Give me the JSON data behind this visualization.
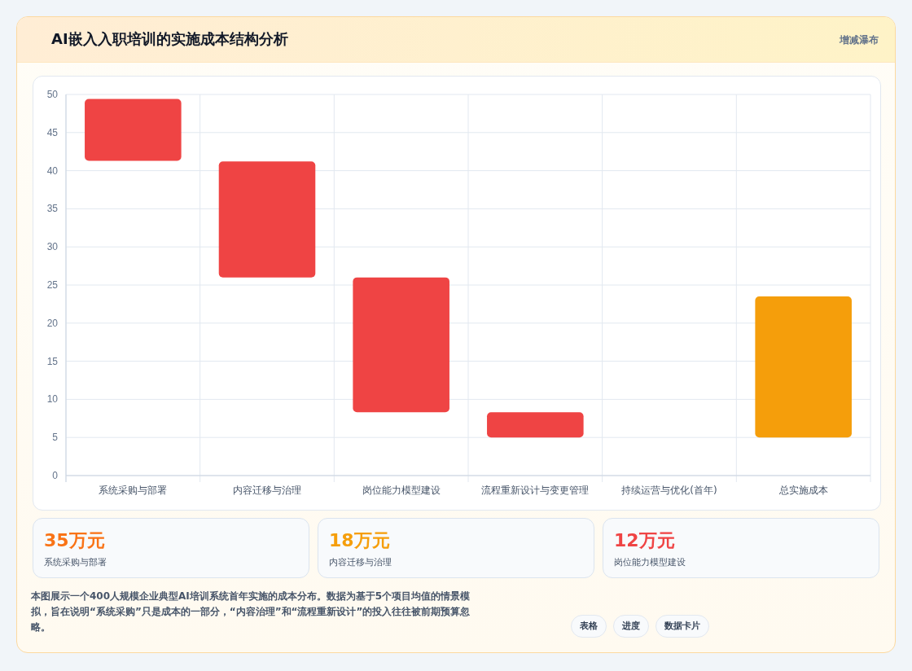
{
  "chart_data": [
    {
      "type": "bar",
      "title": "AI嵌入入职培训的实施成本结构分析",
      "subtitle": "增减瀑布",
      "categories": [
        "系统采购与部署",
        "内容迁移与治理",
        "岗位能力模型建设",
        "流程重新设计与变更管理",
        "持续运营与优化(首年)",
        "总实施成本"
      ],
      "base": [
        41.3,
        26,
        8.3,
        5,
        null,
        5
      ],
      "values": [
        8.1,
        15.2,
        17.7,
        3.3,
        null,
        18.5
      ],
      "colors": [
        "#ef4444",
        "#ef4444",
        "#ef4444",
        "#ef4444",
        null,
        "#f59e0b"
      ],
      "ylim": [
        0,
        50
      ],
      "yticks": [
        0,
        5,
        10,
        15,
        20,
        25,
        30,
        35,
        40,
        45,
        50
      ],
      "grid": true,
      "annotations": [
        "本图展示一个400人规模企业典型AI培训系统首年实施的成本分布。数据为基于5个项目均值的情景模拟，旨在说明“系统采购”只是成本的一部分，“内容治理”和“流程重新设计”的投入往往被前期预算忽略。",
        "表格",
        "进度",
        "数据卡片"
      ]
    },
    {
      "type": "other",
      "annotations": [
        "35万元",
        "系统采购与部署",
        "18万元",
        "内容迁移与治理",
        "12万元",
        "岗位能力模型建设"
      ]
    }
  ]
}
